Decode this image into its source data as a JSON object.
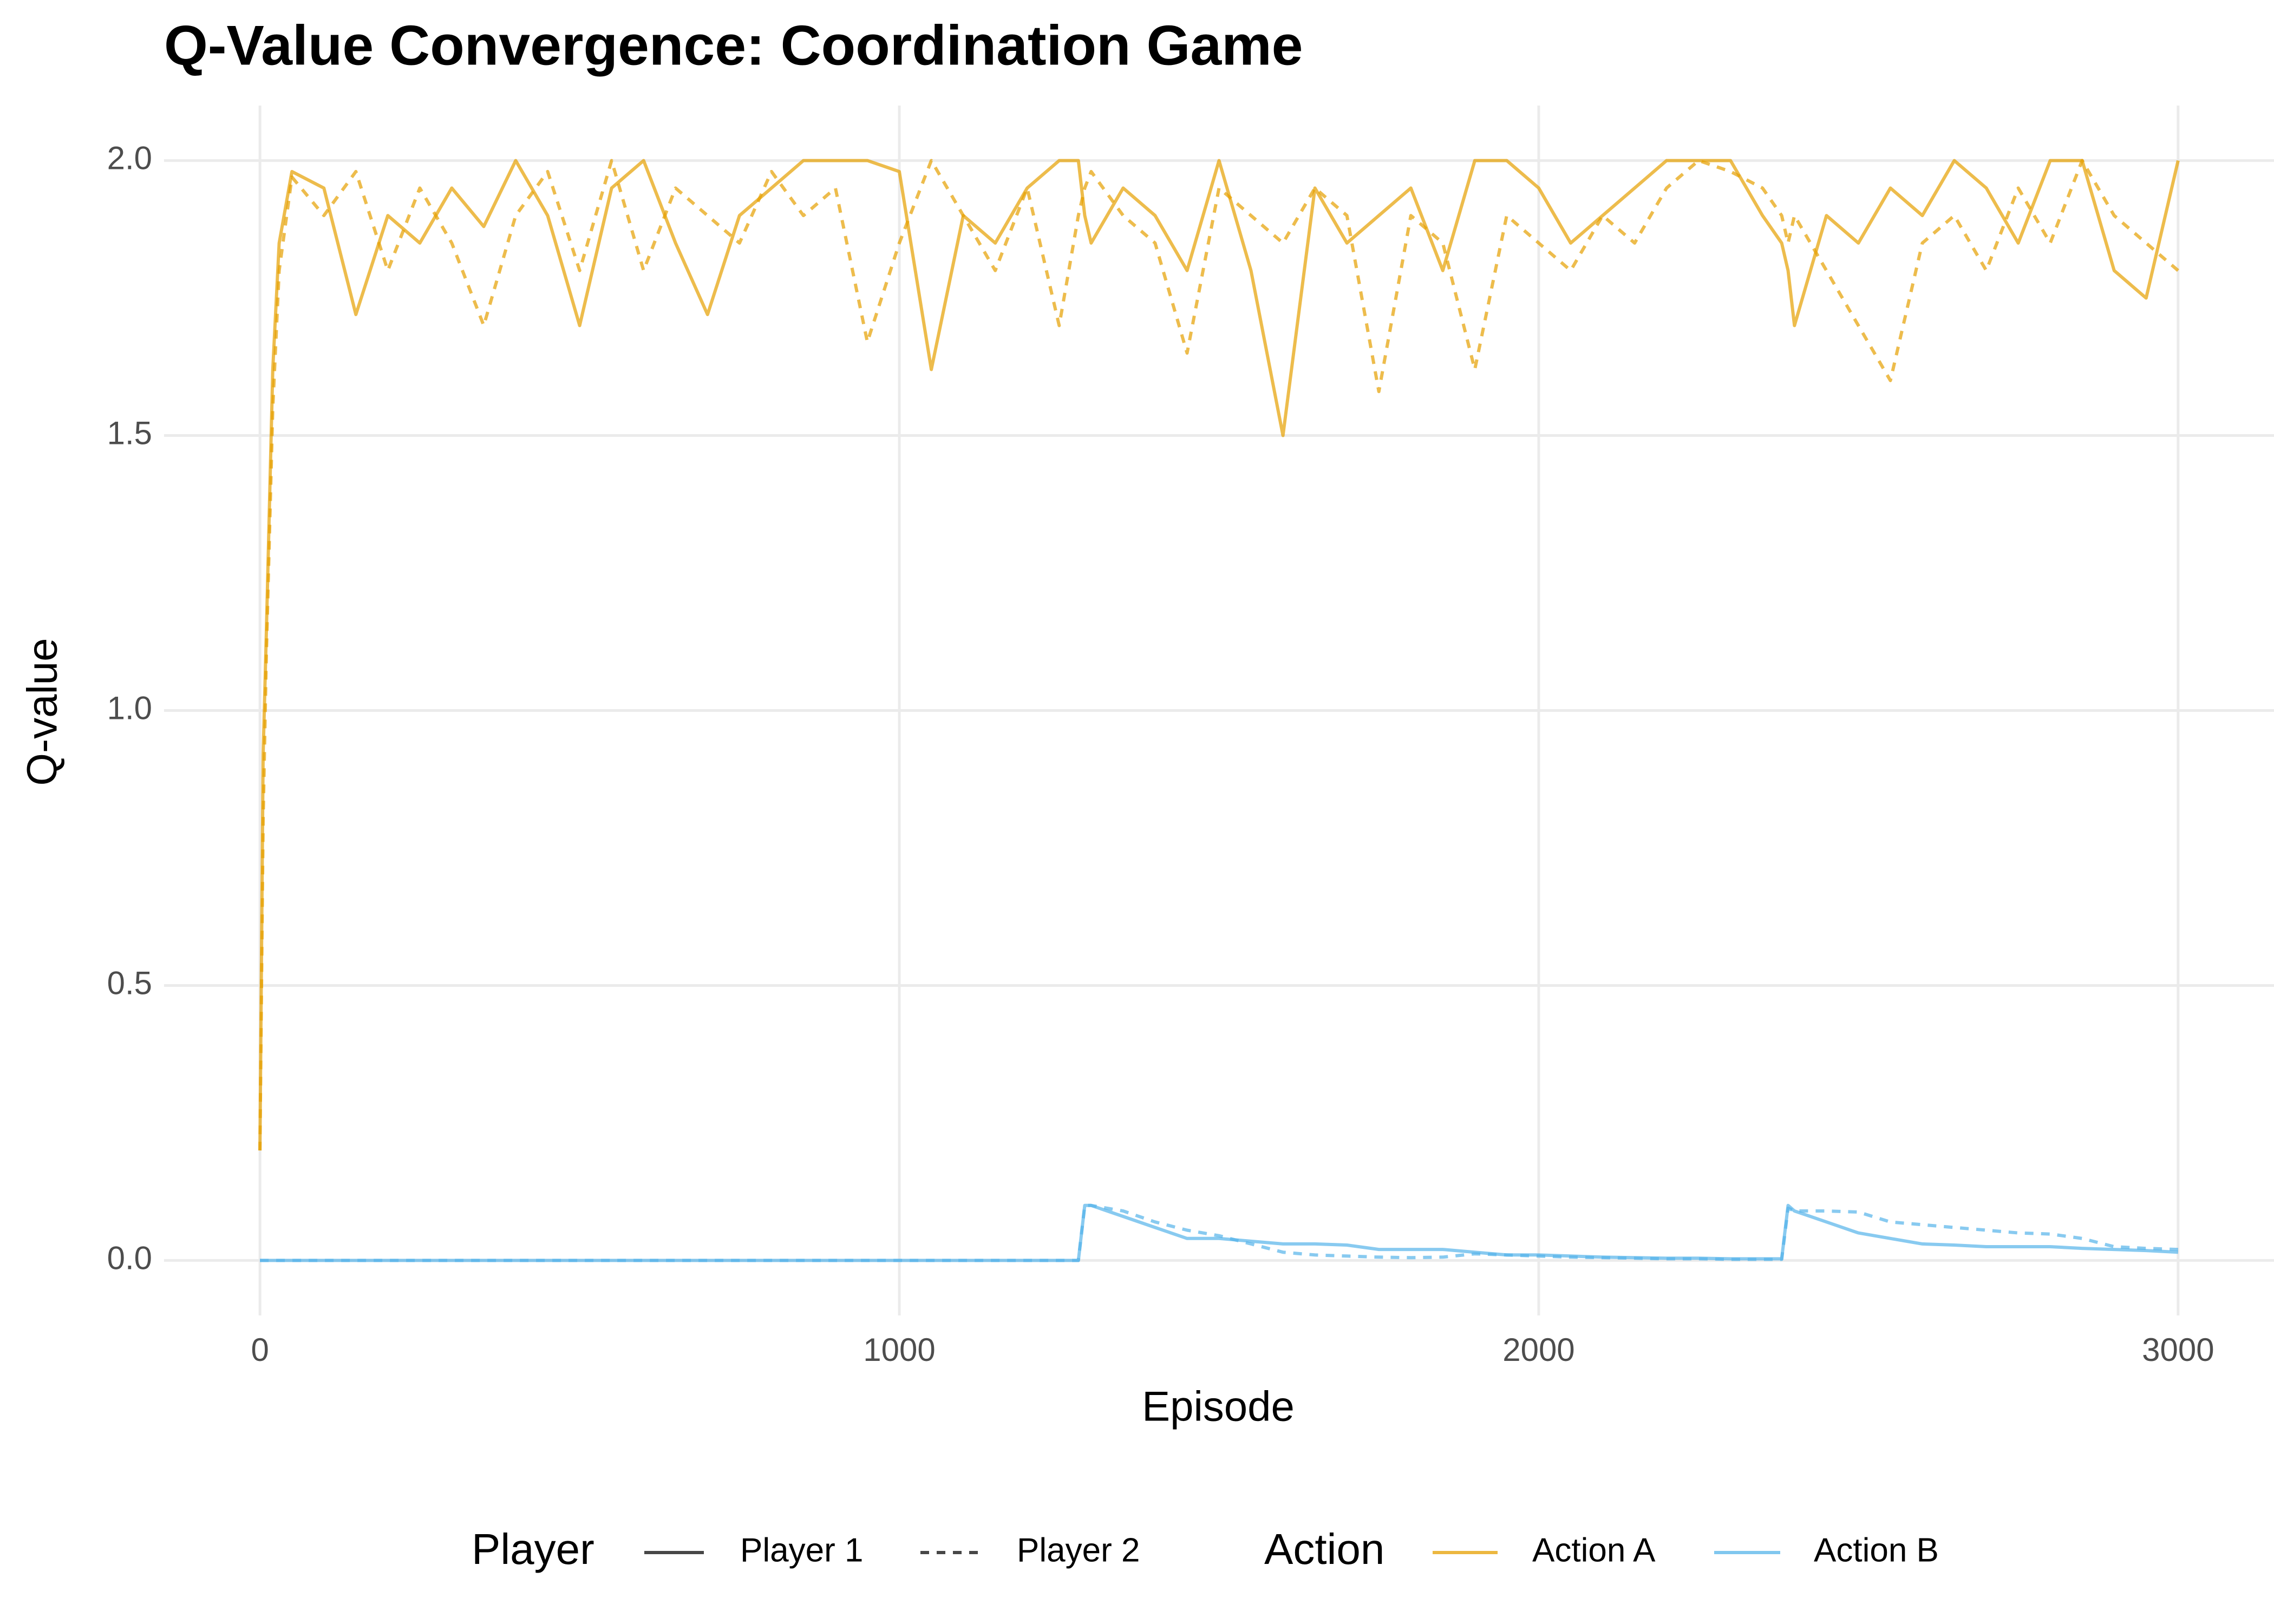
{
  "chart_data": {
    "type": "line",
    "title": "Q-Value Convergence: Coordination Game",
    "x_label": "Episode",
    "y_label": "Q-value",
    "xlim": [
      -150,
      3150
    ],
    "ylim": [
      -0.1,
      2.1
    ],
    "xticks": [
      0,
      1000,
      2000,
      3000
    ],
    "yticks": [
      {
        "value": 0,
        "label": "0.0"
      },
      {
        "value": 0.5,
        "label": "0.5"
      },
      {
        "value": 1,
        "label": "1.0"
      },
      {
        "value": 1.5,
        "label": "1.5"
      },
      {
        "value": 2,
        "label": "2.0"
      }
    ],
    "grid": true,
    "legend_position": "bottom",
    "legends": [
      {
        "title": "Player",
        "entries": [
          {
            "label": "Player 1",
            "linetype": "solid"
          },
          {
            "label": "Player 2",
            "linetype": "dashed"
          }
        ]
      },
      {
        "title": "Action",
        "entries": [
          {
            "label": "Action A",
            "color": "#E69F00"
          },
          {
            "label": "Action B",
            "color": "#56B4E9"
          }
        ]
      }
    ],
    "x": [
      0,
      5,
      10,
      20,
      30,
      50,
      100,
      150,
      200,
      250,
      300,
      350,
      400,
      450,
      500,
      550,
      600,
      650,
      700,
      750,
      800,
      850,
      900,
      950,
      1000,
      1050,
      1100,
      1150,
      1200,
      1250,
      1280,
      1290,
      1300,
      1350,
      1400,
      1450,
      1500,
      1550,
      1600,
      1650,
      1700,
      1750,
      1800,
      1850,
      1900,
      1950,
      2000,
      2050,
      2100,
      2150,
      2200,
      2250,
      2300,
      2350,
      2380,
      2390,
      2400,
      2450,
      2500,
      2550,
      2600,
      2650,
      2700,
      2750,
      2800,
      2850,
      2900,
      2950,
      3000
    ],
    "series": [
      {
        "player": "Player 1",
        "action": "Action A",
        "values": [
          0.2,
          0.92,
          1.14,
          1.62,
          1.85,
          1.98,
          1.95,
          1.72,
          1.9,
          1.85,
          1.95,
          1.88,
          2.0,
          1.9,
          1.7,
          1.95,
          2.0,
          1.85,
          1.72,
          1.9,
          1.95,
          2.0,
          2.0,
          2.0,
          1.98,
          1.62,
          1.9,
          1.85,
          1.95,
          2.0,
          2.0,
          1.9,
          1.85,
          1.95,
          1.9,
          1.8,
          2.0,
          1.8,
          1.5,
          1.95,
          1.85,
          1.9,
          1.95,
          1.8,
          2.0,
          2.0,
          1.95,
          1.85,
          1.9,
          1.95,
          2.0,
          2.0,
          2.0,
          1.9,
          1.85,
          1.8,
          1.7,
          1.9,
          1.85,
          1.95,
          1.9,
          2.0,
          1.95,
          1.85,
          2.0,
          2.0,
          1.8,
          1.75,
          2.0
        ]
      },
      {
        "player": "Player 2",
        "action": "Action A",
        "values": [
          0.2,
          0.8,
          1.1,
          1.55,
          1.8,
          1.97,
          1.9,
          1.98,
          1.8,
          1.95,
          1.85,
          1.7,
          1.9,
          1.98,
          1.8,
          2.0,
          1.8,
          1.95,
          1.9,
          1.85,
          1.98,
          1.9,
          1.95,
          1.67,
          1.85,
          2.0,
          1.9,
          1.8,
          1.95,
          1.7,
          1.9,
          1.95,
          1.98,
          1.9,
          1.85,
          1.65,
          1.95,
          1.9,
          1.85,
          1.95,
          1.9,
          1.58,
          1.9,
          1.85,
          1.62,
          1.9,
          1.85,
          1.8,
          1.9,
          1.85,
          1.95,
          2.0,
          1.98,
          1.95,
          1.9,
          1.85,
          1.9,
          1.8,
          1.7,
          1.6,
          1.85,
          1.9,
          1.8,
          1.95,
          1.85,
          2.0,
          1.9,
          1.85,
          1.8
        ]
      },
      {
        "player": "Player 1",
        "action": "Action B",
        "values": [
          0,
          0,
          0,
          0,
          0,
          0,
          0,
          0,
          0,
          0,
          0,
          0,
          0,
          0,
          0,
          0,
          0,
          0,
          0,
          0,
          0,
          0,
          0,
          0,
          0,
          0,
          0,
          0,
          0,
          0,
          0,
          0.1,
          0.1,
          0.08,
          0.06,
          0.04,
          0.04,
          0.035,
          0.03,
          0.03,
          0.028,
          0.02,
          0.02,
          0.02,
          0.015,
          0.01,
          0.01,
          0.008,
          0.006,
          0.005,
          0.004,
          0.004,
          0.003,
          0.003,
          0.003,
          0.1,
          0.09,
          0.07,
          0.05,
          0.04,
          0.03,
          0.028,
          0.025,
          0.025,
          0.025,
          0.022,
          0.02,
          0.018,
          0.015
        ]
      },
      {
        "player": "Player 2",
        "action": "Action B",
        "values": [
          0,
          0,
          0,
          0,
          0,
          0,
          0,
          0,
          0,
          0,
          0,
          0,
          0,
          0,
          0,
          0,
          0,
          0,
          0,
          0,
          0,
          0,
          0,
          0,
          0,
          0,
          0,
          0,
          0,
          0,
          0,
          0.1,
          0.1,
          0.09,
          0.07,
          0.055,
          0.045,
          0.03,
          0.015,
          0.01,
          0.008,
          0.006,
          0.005,
          0.006,
          0.012,
          0.01,
          0.008,
          0.006,
          0.005,
          0.004,
          0.003,
          0.003,
          0.002,
          0.002,
          0.002,
          0.095,
          0.09,
          0.09,
          0.088,
          0.07,
          0.065,
          0.06,
          0.055,
          0.05,
          0.048,
          0.04,
          0.025,
          0.022,
          0.02
        ]
      }
    ]
  }
}
